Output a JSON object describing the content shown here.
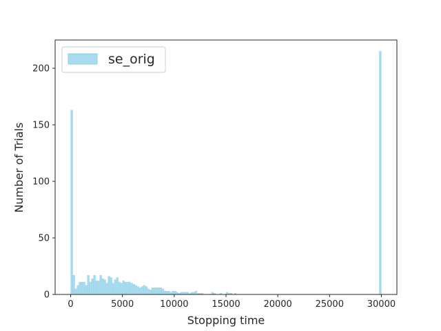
{
  "chart_data": {
    "type": "bar",
    "xlabel": "Stopping time",
    "ylabel": "Number of Trials",
    "xlim": [
      -1500,
      31500
    ],
    "ylim": [
      0,
      225
    ],
    "xticks": [
      0,
      5000,
      10000,
      15000,
      20000,
      25000,
      30000
    ],
    "yticks": [
      0,
      50,
      100,
      150,
      200
    ],
    "bin_width": 200,
    "grid": false,
    "legend_position": "top-left",
    "colors": {
      "fill": "#a8dcec",
      "edge": "#87ceeb",
      "axis": "#262626"
    },
    "series": [
      {
        "name": "se_orig",
        "x": [
          0,
          200,
          400,
          600,
          800,
          1000,
          1200,
          1400,
          1600,
          1800,
          2000,
          2200,
          2400,
          2600,
          2800,
          3000,
          3200,
          3400,
          3600,
          3800,
          4000,
          4200,
          4400,
          4600,
          4800,
          5000,
          5200,
          5400,
          5600,
          5800,
          6000,
          6200,
          6400,
          6600,
          6800,
          7000,
          7200,
          7400,
          7600,
          7800,
          8000,
          8200,
          8400,
          8600,
          8800,
          9000,
          9200,
          9400,
          9600,
          9800,
          10000,
          10200,
          10400,
          10600,
          10800,
          11000,
          11200,
          11400,
          11600,
          11800,
          12000,
          12200,
          12400,
          12600,
          13600,
          13800,
          14400,
          15000,
          15200,
          15400,
          15800,
          29800
        ],
        "values": [
          163,
          17,
          5,
          8,
          11,
          11,
          11,
          8,
          17,
          11,
          14,
          17,
          12,
          12,
          17,
          14,
          13,
          10,
          16,
          15,
          10,
          13,
          15,
          11,
          10,
          12,
          11,
          11,
          11,
          10,
          9,
          8,
          7,
          6,
          7,
          8,
          7,
          5,
          4,
          6,
          6,
          6,
          6,
          6,
          5,
          3,
          3,
          3,
          2,
          3,
          3,
          2,
          1,
          2,
          2,
          2,
          2,
          1,
          2,
          2,
          3,
          1,
          1,
          1,
          2,
          1,
          1,
          2,
          1,
          1,
          1,
          215
        ]
      }
    ]
  }
}
